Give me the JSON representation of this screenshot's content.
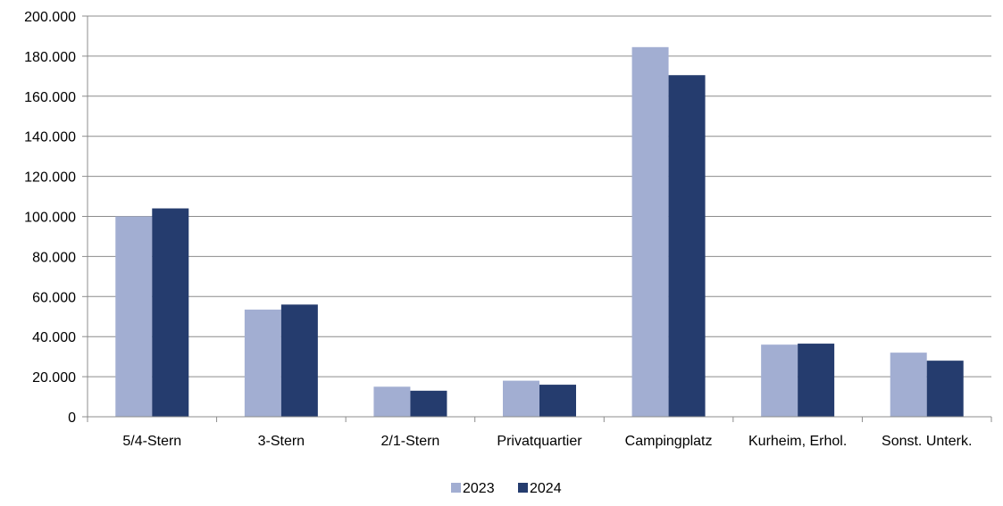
{
  "chart_data": {
    "type": "bar",
    "categories": [
      "5/4-Stern",
      "3-Stern",
      "2/1-Stern",
      "Privatquartier",
      "Campingplatz",
      "Kurheim, Erhol.",
      "Sonst. Unterk."
    ],
    "series": [
      {
        "name": "2023",
        "color": "#a2aed2",
        "values": [
          100000,
          53500,
          15000,
          18000,
          184500,
          36000,
          32000
        ]
      },
      {
        "name": "2024",
        "color": "#253c6e",
        "values": [
          104000,
          56000,
          13000,
          16000,
          170500,
          36500,
          28000
        ]
      }
    ],
    "ylim": [
      0,
      200000
    ],
    "yticks": [
      "0",
      "20.000",
      "40.000",
      "60.000",
      "80.000",
      "100.000",
      "120.000",
      "140.000",
      "160.000",
      "180.000",
      "200.000"
    ],
    "ytick_step": 20000,
    "grid": true,
    "legend_position": "bottom-center"
  }
}
